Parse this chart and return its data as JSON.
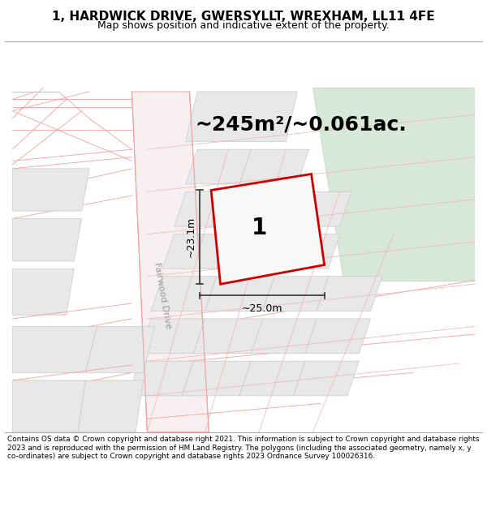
{
  "title": "1, HARDWICK DRIVE, GWERSYLLT, WREXHAM, LL11 4FE",
  "subtitle": "Map shows position and indicative extent of the property.",
  "area_text": "~245m²/~0.061ac.",
  "dim_width": "~25.0m",
  "dim_height": "~23.1m",
  "plot_number": "1",
  "footer": "Contains OS data © Crown copyright and database right 2021. This information is subject to Crown copyright and database rights 2023 and is reproduced with the permission of HM Land Registry. The polygons (including the associated geometry, namely x, y co-ordinates) are subject to Crown copyright and database rights 2023 Ordnance Survey 100026316.",
  "plot_edge": "#cc0000",
  "road_line_color": "#f0a0a0",
  "green_fill": "#d8e8d8",
  "green_edge": "#c8d8c8",
  "grey_fill": "#e8e8e8",
  "grey_edge": "#c8c8c8",
  "parcel_edge": "#f0b0b0",
  "road_label": "Fairwood Drive",
  "dim_line_color": "#333333",
  "map_bg": "#ffffff",
  "title_fontsize": 11,
  "subtitle_fontsize": 9,
  "area_fontsize": 18,
  "plot_num_fontsize": 20
}
